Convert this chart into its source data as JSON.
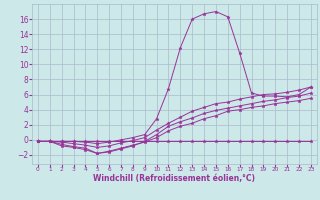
{
  "background_color": "#cce8e8",
  "grid_color": "#aabbcc",
  "line_color": "#993399",
  "xlabel": "Windchill (Refroidissement éolien,°C)",
  "xlim": [
    -0.5,
    23.5
  ],
  "ylim": [
    -3.2,
    18.0
  ],
  "yticks": [
    -2,
    0,
    2,
    4,
    6,
    8,
    10,
    12,
    14,
    16
  ],
  "xticks": [
    0,
    1,
    2,
    3,
    4,
    5,
    6,
    7,
    8,
    9,
    10,
    11,
    12,
    13,
    14,
    15,
    16,
    17,
    18,
    19,
    20,
    21,
    22,
    23
  ],
  "series": [
    {
      "x": [
        0,
        1,
        2,
        3,
        4,
        5,
        6,
        7,
        8,
        9,
        10,
        11,
        12,
        13,
        14,
        15,
        16,
        17,
        18,
        19,
        20,
        21,
        22,
        23
      ],
      "y": [
        -0.2,
        -0.2,
        -0.2,
        -0.2,
        -0.2,
        -0.2,
        -0.2,
        -0.2,
        -0.2,
        -0.2,
        -0.2,
        -0.2,
        -0.2,
        -0.2,
        -0.2,
        -0.2,
        -0.2,
        -0.2,
        -0.2,
        -0.2,
        -0.2,
        -0.2,
        -0.2,
        -0.2
      ]
    },
    {
      "x": [
        0,
        1,
        2,
        3,
        4,
        5,
        6,
        7,
        8,
        9,
        10,
        11,
        12,
        13,
        14,
        15,
        16,
        17,
        18,
        19,
        20,
        21,
        22,
        23
      ],
      "y": [
        -0.2,
        -0.2,
        -0.8,
        -1.0,
        -1.3,
        -1.8,
        -1.5,
        -1.1,
        -0.7,
        -0.3,
        0.3,
        1.2,
        1.8,
        2.2,
        2.8,
        3.2,
        3.8,
        4.0,
        4.3,
        4.5,
        4.8,
        5.0,
        5.2,
        5.5
      ]
    },
    {
      "x": [
        0,
        1,
        2,
        3,
        4,
        5,
        6,
        7,
        8,
        9,
        10,
        11,
        12,
        13,
        14,
        15,
        16,
        17,
        18,
        19,
        20,
        21,
        22,
        23
      ],
      "y": [
        -0.2,
        -0.2,
        -0.6,
        -0.9,
        -1.1,
        -1.8,
        -1.6,
        -1.2,
        -0.8,
        -0.2,
        0.7,
        1.8,
        2.4,
        2.9,
        3.5,
        3.9,
        4.2,
        4.5,
        4.8,
        5.1,
        5.3,
        5.6,
        5.8,
        6.2
      ]
    },
    {
      "x": [
        0,
        1,
        2,
        3,
        4,
        5,
        6,
        7,
        8,
        9,
        10,
        11,
        12,
        13,
        14,
        15,
        16,
        17,
        18,
        19,
        20,
        21,
        22,
        23
      ],
      "y": [
        -0.2,
        -0.2,
        -0.3,
        -0.5,
        -0.7,
        -1.0,
        -0.8,
        -0.4,
        -0.1,
        0.3,
        1.3,
        2.2,
        3.0,
        3.8,
        4.3,
        4.8,
        5.0,
        5.4,
        5.7,
        6.0,
        6.1,
        6.3,
        6.6,
        7.0
      ]
    },
    {
      "x": [
        0,
        1,
        2,
        3,
        4,
        5,
        6,
        7,
        8,
        9,
        10,
        11,
        12,
        13,
        14,
        15,
        16,
        17,
        18,
        19,
        20,
        21,
        22,
        23
      ],
      "y": [
        -0.2,
        -0.2,
        -0.2,
        -0.2,
        -0.3,
        -0.5,
        -0.3,
        0.0,
        0.3,
        0.7,
        2.8,
        6.8,
        12.2,
        16.0,
        16.7,
        17.0,
        16.3,
        11.5,
        6.2,
        5.8,
        5.8,
        5.7,
        6.0,
        7.0
      ]
    }
  ]
}
